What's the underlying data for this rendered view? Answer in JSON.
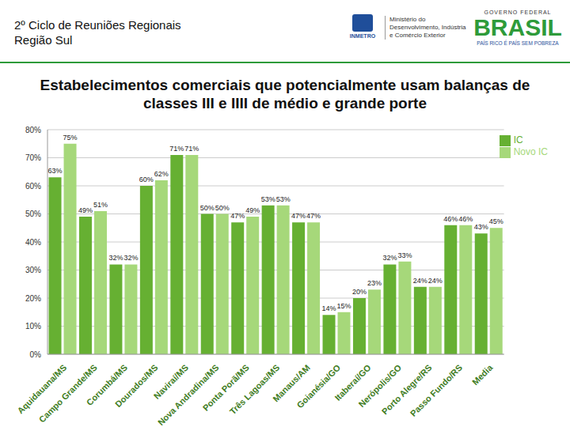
{
  "chart_data": {
    "type": "bar",
    "title": "Estabelecimentos comerciais que potencialmente usam balanças de classes III e IIII de médio e grande porte",
    "annotations": [
      "2º Ciclo de Reuniões Regionais",
      "Região Sul",
      "INMETRO",
      "Ministério do Desenvolvimento, Indústria e Comércio Exterior",
      "GOVERNO FEDERAL",
      "BRASIL",
      "PAÍS RICO É PAÍS SEM POBREZA"
    ],
    "categories": [
      "Aquidauana/MS",
      "Campo Grande/MS",
      "Corumbá/MS",
      "Dourados/MS",
      "Naviraí/MS",
      "Nova Andradina/MS",
      "Ponta Porã/MS",
      "Três Lagoas/MS",
      "Manaus/AM",
      "Goianésia/GO",
      "Itaberaí/GO",
      "Nerópolis/GO",
      "Porto Alegre/RS",
      "Passo Fundo/RS",
      "Media"
    ],
    "series": [
      {
        "name": "IC",
        "color": "#66b032",
        "values": [
          63,
          49,
          32,
          60,
          71,
          50,
          47,
          53,
          47,
          14,
          20,
          32,
          24,
          46,
          43
        ],
        "value_labels": [
          "63%",
          "49%",
          "32%",
          "60%",
          "71%",
          "50%",
          "47%",
          "53%",
          "47%",
          "14%",
          "20%",
          "32%",
          "24%",
          "46%",
          "43%"
        ]
      },
      {
        "name": "Novo IC",
        "color": "#a6d87a",
        "values": [
          75,
          51,
          32,
          62,
          71,
          50,
          49,
          53,
          47,
          15,
          23,
          33,
          24,
          46,
          45
        ],
        "value_labels": [
          "75%",
          "51%",
          "32%",
          "62%",
          "71%",
          "50%",
          "49%",
          "53%",
          "47%",
          "15%",
          "23%",
          "33%",
          "24%",
          "46%",
          "45%"
        ]
      }
    ],
    "ylim": [
      0,
      80
    ],
    "yticks": [
      {
        "value": 0,
        "label": "0%"
      },
      {
        "value": 10,
        "label": "10%"
      },
      {
        "value": 20,
        "label": "20%"
      },
      {
        "value": 30,
        "label": "30%"
      },
      {
        "value": 40,
        "label": "40%"
      },
      {
        "value": 50,
        "label": "50%"
      },
      {
        "value": 60,
        "label": "60%"
      },
      {
        "value": 70,
        "label": "70%"
      },
      {
        "value": 80,
        "label": "80%"
      }
    ],
    "grid": true,
    "legend": "upper right",
    "data_labels": true
  }
}
